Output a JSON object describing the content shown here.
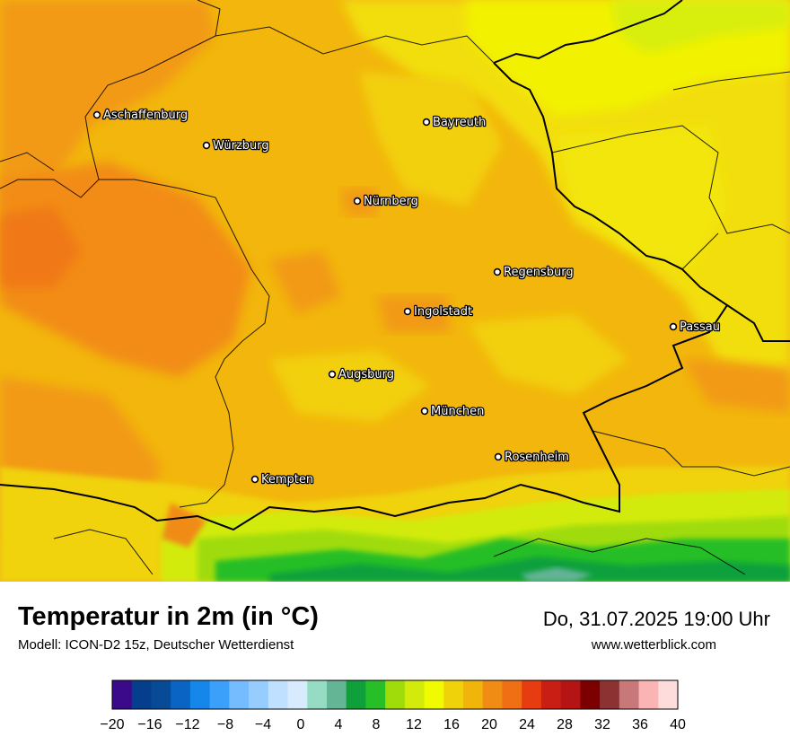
{
  "map": {
    "title": "Temperatur in 2m (in °C)",
    "model": "Modell: ICON-D2 15z, Deutscher Wetterdienst",
    "datetime": "Do, 31.07.2025 19:00 Uhr",
    "website": "www.wetterblick.com",
    "cities": [
      {
        "id": "aschaffenburg",
        "name": "Aschaffenburg"
      },
      {
        "id": "wuerzburg",
        "name": "Würzburg"
      },
      {
        "id": "bayreuth",
        "name": "Bayreuth"
      },
      {
        "id": "nuernberg",
        "name": "Nürnberg"
      },
      {
        "id": "regensburg",
        "name": "Regensburg"
      },
      {
        "id": "ingolstadt",
        "name": "Ingolstadt"
      },
      {
        "id": "passau",
        "name": "Passau"
      },
      {
        "id": "augsburg",
        "name": "Augsburg"
      },
      {
        "id": "muenchen",
        "name": "München"
      },
      {
        "id": "rosenheim",
        "name": "Rosenheim"
      },
      {
        "id": "kempten",
        "name": "Kempten"
      }
    ]
  },
  "legend": {
    "min": -20,
    "max": 40,
    "step": 2,
    "tick_labels": [
      "−20",
      "−16",
      "−12",
      "−8",
      "−4",
      "0",
      "4",
      "8",
      "12",
      "16",
      "20",
      "24",
      "28",
      "32",
      "36",
      "40"
    ],
    "colors": [
      "#3a0a8a",
      "#053e8c",
      "#074a96",
      "#0a64c4",
      "#1586ea",
      "#3aa0fa",
      "#74bcfe",
      "#96ccfe",
      "#bfe0fe",
      "#d8ebfe",
      "#96dcc4",
      "#64b496",
      "#0fa03c",
      "#28be28",
      "#a0dc0a",
      "#d2eb0a",
      "#f0fa00",
      "#f0d20a",
      "#f0b40a",
      "#f08c14",
      "#f06e14",
      "#e63c0f",
      "#c81e14",
      "#b41414",
      "#7d0000",
      "#8c3232",
      "#c87878",
      "#fab4b4",
      "#ffdcdc"
    ]
  }
}
